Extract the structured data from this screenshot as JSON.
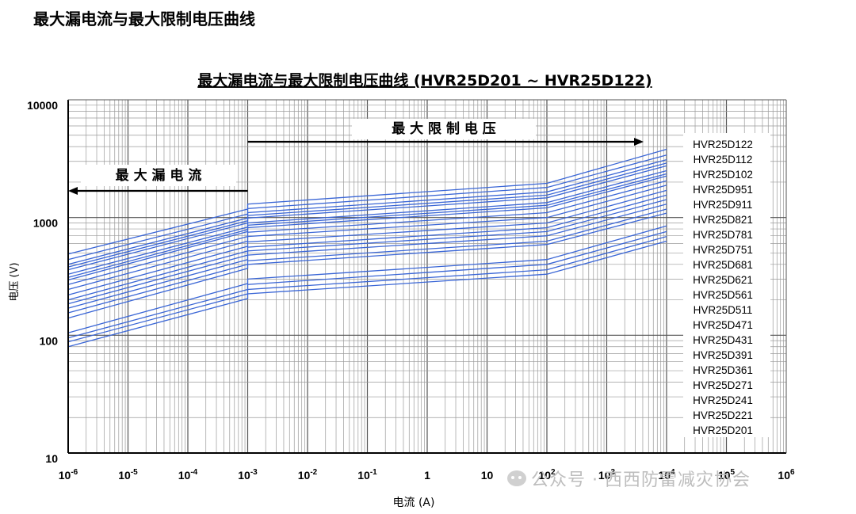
{
  "page_title": "最大漏电流与最大限制电压曲线",
  "watermark": "公众号 · 西西防雷减灾协会",
  "chart_data": {
    "type": "line",
    "title": "最大漏电流与最大限制电压曲线  (HVR25D201 ~ HVR25D122)",
    "xlabel": "电流 (A)",
    "ylabel": "电压 (V)",
    "x_scale": "log",
    "y_scale": "log",
    "xlim": [
      1e-06,
      1000000
    ],
    "ylim": [
      10,
      10000
    ],
    "x_ticks": [
      {
        "base": "10",
        "exp": "-6"
      },
      {
        "base": "10",
        "exp": "-5"
      },
      {
        "base": "10",
        "exp": "-4"
      },
      {
        "base": "10",
        "exp": "-3"
      },
      {
        "base": "10",
        "exp": "-2"
      },
      {
        "base": "10",
        "exp": "-1"
      },
      {
        "base": "1",
        "exp": ""
      },
      {
        "base": "10",
        "exp": ""
      },
      {
        "base": "10",
        "exp": "2"
      },
      {
        "base": "10",
        "exp": "3"
      },
      {
        "base": "10",
        "exp": "4"
      },
      {
        "base": "10",
        "exp": "5"
      },
      {
        "base": "10",
        "exp": "6"
      }
    ],
    "y_ticks": [
      "10",
      "100",
      "1000",
      "10000"
    ],
    "grid": true,
    "region_labels": {
      "leakage": "最 大 漏 电 流",
      "clamping": "最 大 限 制 电 压"
    },
    "series_color": "#3a66d6",
    "series": [
      {
        "name": "HVR25D122",
        "x": [
          1e-06,
          0.001,
          0.001,
          100,
          10000
        ],
        "y": [
          490,
          1180,
          1300,
          1950,
          3800
        ]
      },
      {
        "name": "HVR25D112",
        "x": [
          1e-06,
          0.001,
          0.001,
          100,
          10000
        ],
        "y": [
          440,
          1070,
          1190,
          1800,
          3400
        ]
      },
      {
        "name": "HVR25D102",
        "x": [
          1e-06,
          0.001,
          0.001,
          100,
          10000
        ],
        "y": [
          400,
          990,
          1100,
          1650,
          3100
        ]
      },
      {
        "name": "HVR25D951",
        "x": [
          1e-06,
          0.001,
          0.001,
          100,
          10000
        ],
        "y": [
          380,
          940,
          1040,
          1550,
          2900
        ]
      },
      {
        "name": "HVR25D911",
        "x": [
          1e-06,
          0.001,
          0.001,
          100,
          10000
        ],
        "y": [
          360,
          900,
          990,
          1470,
          2750
        ]
      },
      {
        "name": "HVR25D821",
        "x": [
          1e-06,
          0.001,
          0.001,
          100,
          10000
        ],
        "y": [
          330,
          830,
          900,
          1340,
          2500
        ]
      },
      {
        "name": "HVR25D781",
        "x": [
          1e-06,
          0.001,
          0.001,
          100,
          10000
        ],
        "y": [
          310,
          790,
          860,
          1270,
          2350
        ]
      },
      {
        "name": "HVR25D751",
        "x": [
          1e-06,
          0.001,
          0.001,
          100,
          10000
        ],
        "y": [
          295,
          760,
          820,
          1210,
          2250
        ]
      },
      {
        "name": "HVR25D681",
        "x": [
          1e-06,
          0.001,
          0.001,
          100,
          10000
        ],
        "y": [
          270,
          690,
          750,
          1100,
          2050
        ]
      },
      {
        "name": "HVR25D621",
        "x": [
          1e-06,
          0.001,
          0.001,
          100,
          10000
        ],
        "y": [
          245,
          630,
          690,
          1000,
          1880
        ]
      },
      {
        "name": "HVR25D561",
        "x": [
          1e-06,
          0.001,
          0.001,
          100,
          10000
        ],
        "y": [
          220,
          570,
          620,
          900,
          1700
        ]
      },
      {
        "name": "HVR25D511",
        "x": [
          1e-06,
          0.001,
          0.001,
          100,
          10000
        ],
        "y": [
          200,
          520,
          560,
          820,
          1550
        ]
      },
      {
        "name": "HVR25D471",
        "x": [
          1e-06,
          0.001,
          0.001,
          100,
          10000
        ],
        "y": [
          185,
          480,
          520,
          760,
          1420
        ]
      },
      {
        "name": "HVR25D431",
        "x": [
          1e-06,
          0.001,
          0.001,
          100,
          10000
        ],
        "y": [
          170,
          440,
          480,
          700,
          1300
        ]
      },
      {
        "name": "HVR25D391",
        "x": [
          1e-06,
          0.001,
          0.001,
          100,
          10000
        ],
        "y": [
          155,
          400,
          430,
          630,
          1180
        ]
      },
      {
        "name": "HVR25D361",
        "x": [
          1e-06,
          0.001,
          0.001,
          100,
          10000
        ],
        "y": [
          140,
          370,
          400,
          590,
          1090
        ]
      },
      {
        "name": "HVR25D271",
        "x": [
          1e-06,
          0.001,
          0.001,
          100,
          10000
        ],
        "y": [
          105,
          275,
          300,
          440,
          850
        ]
      },
      {
        "name": "HVR25D241",
        "x": [
          1e-06,
          0.001,
          0.001,
          100,
          10000
        ],
        "y": [
          95,
          245,
          270,
          400,
          760
        ]
      },
      {
        "name": "HVR25D221",
        "x": [
          1e-06,
          0.001,
          0.001,
          100,
          10000
        ],
        "y": [
          88,
          225,
          245,
          360,
          690
        ]
      },
      {
        "name": "HVR25D201",
        "x": [
          1e-06,
          0.001,
          0.001,
          100,
          10000
        ],
        "y": [
          80,
          205,
          225,
          330,
          630
        ]
      }
    ]
  }
}
